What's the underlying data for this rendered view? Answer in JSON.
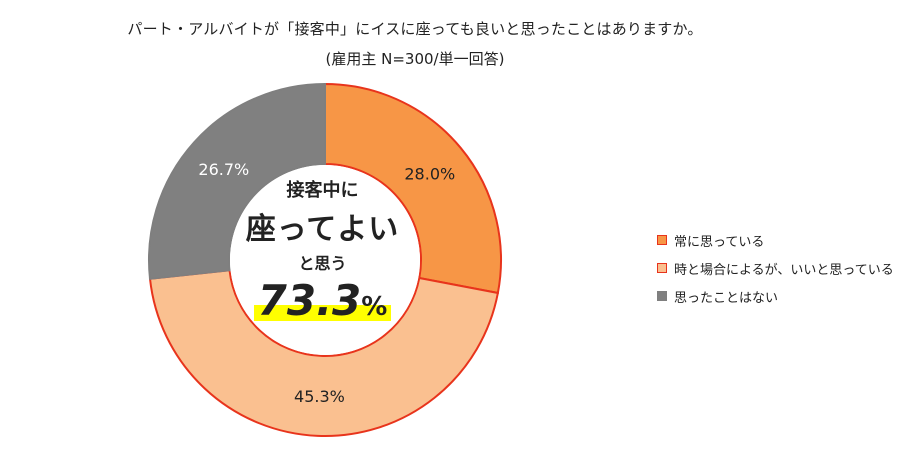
{
  "title": "パート・アルバイトが「接客中」にイスに座っても良いと思ったことはありますか。",
  "subtitle": "(雇用主 N=300/単一回答)",
  "center": {
    "line1": "接客中に",
    "line2": "座ってよい",
    "line3": "と思う",
    "value": "73.3",
    "unit": "%"
  },
  "chart_data": {
    "type": "pie",
    "variant": "donut",
    "categories": [
      "常に思っている",
      "時と場合によるが、いいと思っている",
      "思ったことはない"
    ],
    "values": [
      28.0,
      45.3,
      26.7
    ],
    "labels": [
      "28.0%",
      "45.3%",
      "26.7%"
    ],
    "colors": [
      "#f79646",
      "#fac090",
      "#808080"
    ],
    "outline_colors": [
      "#e8341c",
      "#e8341c",
      "#7f7f7f"
    ],
    "legend_position": "right",
    "start": "top-clockwise"
  }
}
